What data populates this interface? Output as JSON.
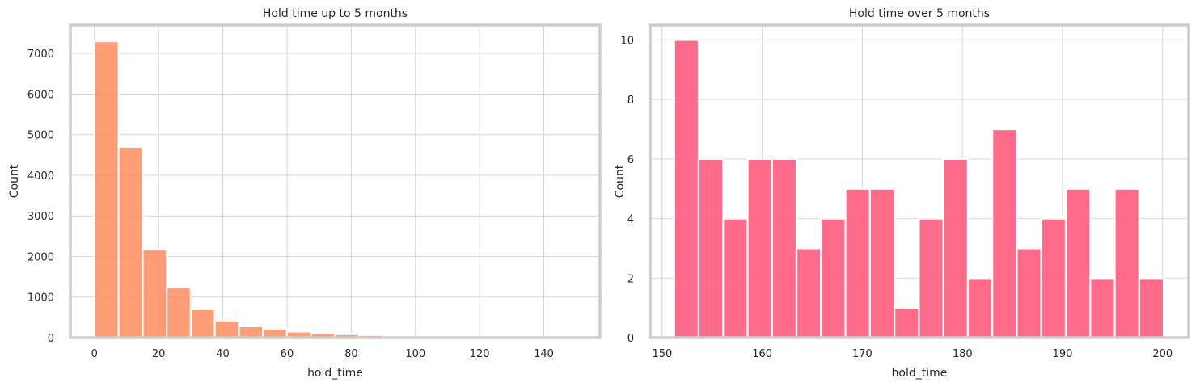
{
  "chart_data": [
    {
      "type": "bar",
      "title": "Hold time up to 5 months",
      "xlabel": "hold_time",
      "ylabel": "Count",
      "xlim": [
        -7.5,
        157.5
      ],
      "ylim": [
        0,
        7700
      ],
      "xticks": [
        0,
        20,
        40,
        60,
        80,
        100,
        120,
        140
      ],
      "yticks": [
        0,
        1000,
        2000,
        3000,
        4000,
        5000,
        6000,
        7000
      ],
      "grid": true,
      "color": "#ff8c5e",
      "bin_width": 7.5,
      "bins": [
        {
          "x0": 0,
          "value": 7300
        },
        {
          "x0": 7.5,
          "value": 4700
        },
        {
          "x0": 15,
          "value": 2170
        },
        {
          "x0": 22.5,
          "value": 1240
        },
        {
          "x0": 30,
          "value": 700
        },
        {
          "x0": 37.5,
          "value": 420
        },
        {
          "x0": 45,
          "value": 280
        },
        {
          "x0": 52.5,
          "value": 220
        },
        {
          "x0": 60,
          "value": 150
        },
        {
          "x0": 67.5,
          "value": 110
        },
        {
          "x0": 75,
          "value": 85
        },
        {
          "x0": 82.5,
          "value": 65
        },
        {
          "x0": 90,
          "value": 45
        },
        {
          "x0": 97.5,
          "value": 35
        },
        {
          "x0": 105,
          "value": 25
        },
        {
          "x0": 112.5,
          "value": 20
        },
        {
          "x0": 120,
          "value": 15
        },
        {
          "x0": 127.5,
          "value": 12
        },
        {
          "x0": 135,
          "value": 10
        },
        {
          "x0": 142.5,
          "value": 8
        }
      ]
    },
    {
      "type": "bar",
      "title": "Hold time over 5 months",
      "xlabel": "hold_time",
      "ylabel": "Count",
      "xlim": [
        148.8,
        202.6
      ],
      "ylim": [
        0,
        10.5
      ],
      "xticks": [
        150,
        160,
        170,
        180,
        190,
        200
      ],
      "yticks": [
        0,
        2,
        4,
        6,
        8,
        10
      ],
      "grid": true,
      "color": "#ff5277",
      "bin_width": 2.445,
      "bins": [
        {
          "x0": 151.2,
          "value": 10
        },
        {
          "x0": 153.645,
          "value": 6
        },
        {
          "x0": 156.09,
          "value": 4
        },
        {
          "x0": 158.535,
          "value": 6
        },
        {
          "x0": 160.98,
          "value": 6
        },
        {
          "x0": 163.425,
          "value": 3
        },
        {
          "x0": 165.87,
          "value": 4
        },
        {
          "x0": 168.315,
          "value": 5
        },
        {
          "x0": 170.76,
          "value": 5
        },
        {
          "x0": 173.205,
          "value": 1
        },
        {
          "x0": 175.65,
          "value": 4
        },
        {
          "x0": 178.095,
          "value": 6
        },
        {
          "x0": 180.54,
          "value": 2
        },
        {
          "x0": 182.985,
          "value": 7
        },
        {
          "x0": 185.43,
          "value": 3
        },
        {
          "x0": 187.875,
          "value": 4
        },
        {
          "x0": 190.32,
          "value": 5
        },
        {
          "x0": 192.765,
          "value": 2
        },
        {
          "x0": 195.21,
          "value": 5
        },
        {
          "x0": 197.655,
          "value": 2
        }
      ]
    }
  ]
}
